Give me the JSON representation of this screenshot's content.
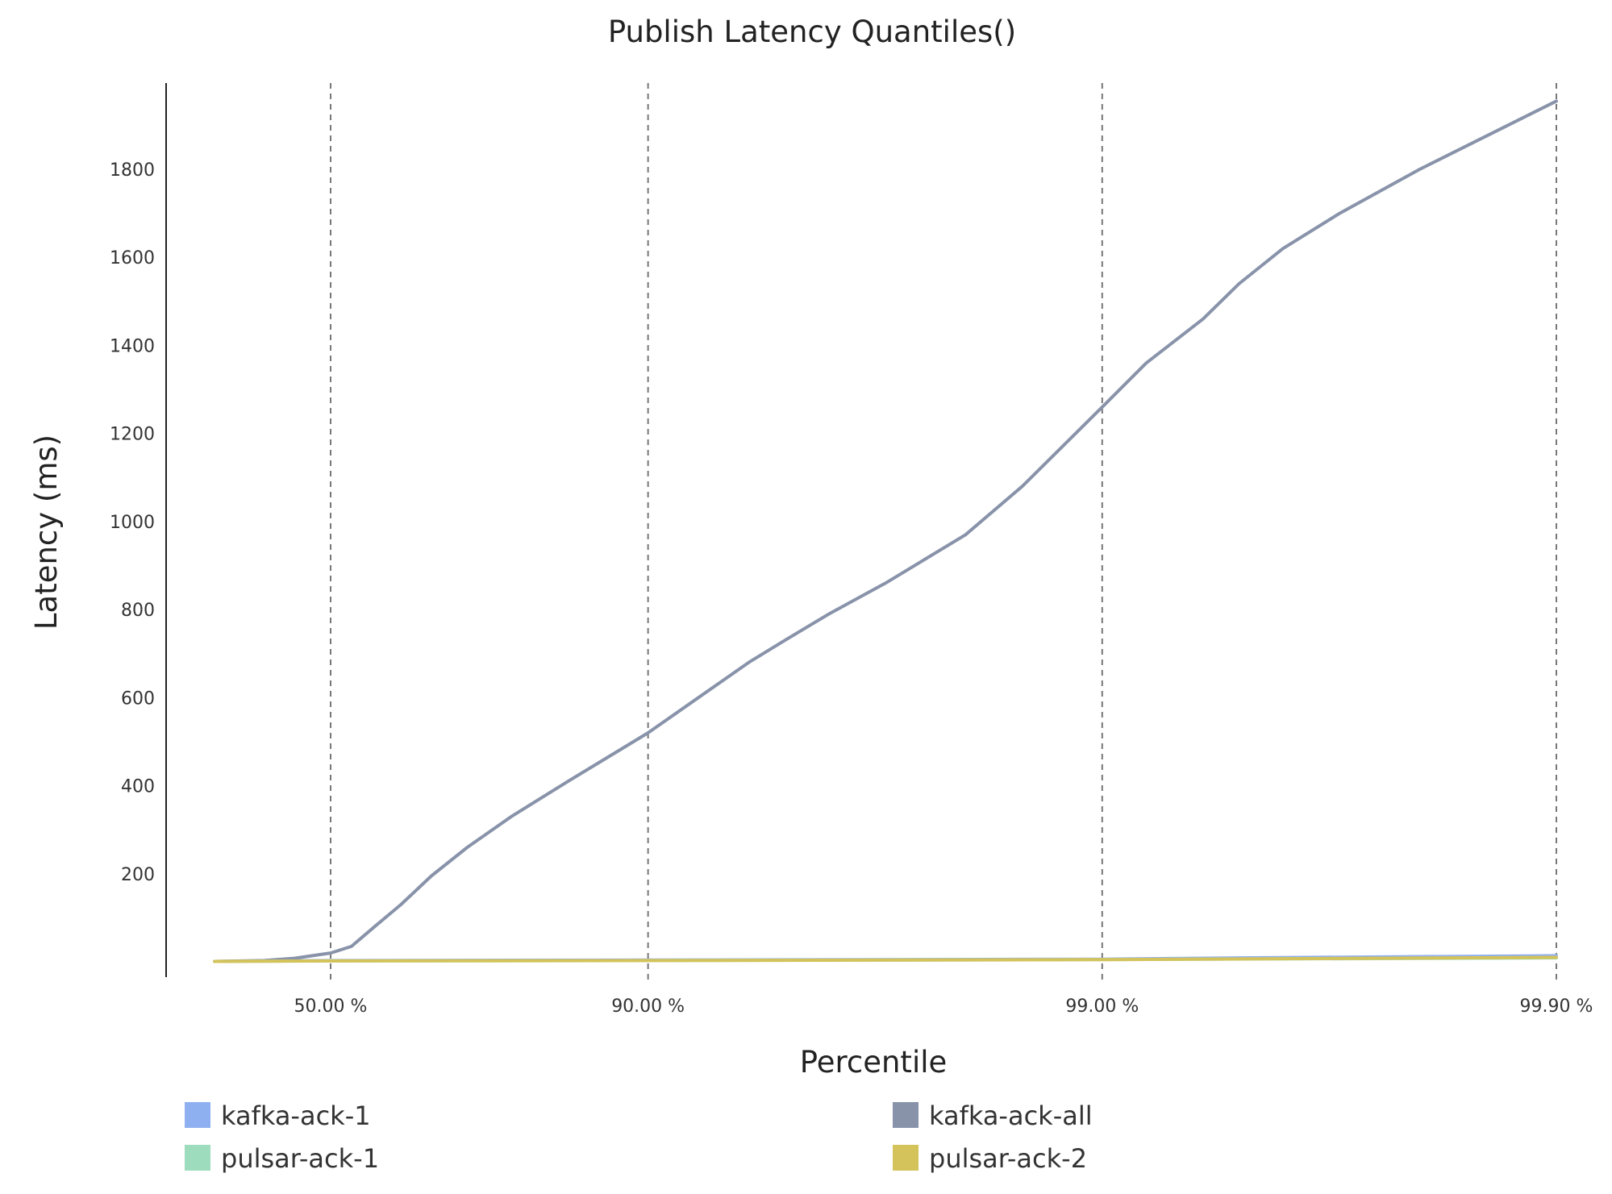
{
  "chart_data": {
    "type": "line",
    "title": "Publish Latency Quantiles()",
    "xlabel": "Percentile",
    "ylabel": "Latency (ms)",
    "x_scale": "log-complement",
    "x_ticks": [
      50.0,
      90.0,
      99.0,
      99.9
    ],
    "x_tick_labels": [
      "50.00 %",
      "90.00 %",
      "99.00 %",
      "99.90 %"
    ],
    "y_ticks": [
      200,
      400,
      600,
      800,
      1000,
      1200,
      1400,
      1600,
      1800
    ],
    "ylim": [
      0,
      1960
    ],
    "grid": "vertical-dashed",
    "legend_position": "bottom",
    "series": [
      {
        "name": "kafka-ack-1",
        "color": "#8fb0f0",
        "x": [
          10,
          30,
          50,
          90,
          99,
          99.5,
          99.9
        ],
        "y": [
          1,
          2,
          3,
          4,
          6,
          9,
          14
        ]
      },
      {
        "name": "kafka-ack-all",
        "color": "#8893aa",
        "x": [
          10,
          30,
          40,
          50,
          55,
          60,
          65,
          70,
          75,
          80,
          85,
          90,
          92,
          94,
          95,
          96,
          97,
          98,
          98.5,
          99,
          99.2,
          99.4,
          99.5,
          99.6,
          99.7,
          99.8,
          99.9
        ],
        "y": [
          1,
          3,
          8,
          20,
          35,
          80,
          130,
          195,
          260,
          330,
          410,
          520,
          590,
          680,
          730,
          790,
          860,
          970,
          1080,
          1260,
          1360,
          1460,
          1540,
          1620,
          1700,
          1800,
          1955
        ]
      },
      {
        "name": "pulsar-ack-1",
        "color": "#9ddcbd",
        "x": [
          10,
          50,
          90,
          99,
          99.9
        ],
        "y": [
          1,
          2,
          3,
          5,
          9
        ]
      },
      {
        "name": "pulsar-ack-2",
        "color": "#d4c35a",
        "x": [
          10,
          50,
          90,
          99,
          99.9
        ],
        "y": [
          1,
          2,
          3,
          5,
          10
        ]
      }
    ]
  }
}
